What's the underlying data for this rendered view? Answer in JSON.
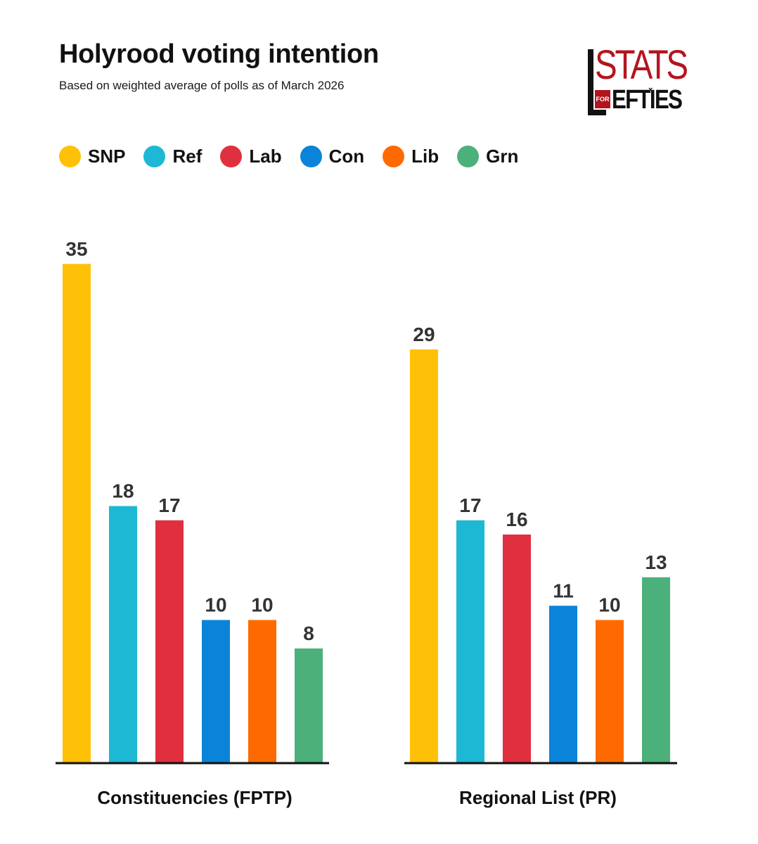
{
  "title": "Holyrood voting intention",
  "subtitle": "Based on weighted average of polls as of March 2026",
  "logo": {
    "line1": "STATS",
    "line2_badge": "FOR",
    "line2": "EFTIES",
    "mark": "×"
  },
  "legend": [
    {
      "label": "SNP",
      "color": "#FFC107"
    },
    {
      "label": "Ref",
      "color": "#1DB8D3"
    },
    {
      "label": "Lab",
      "color": "#E0303F"
    },
    {
      "label": "Con",
      "color": "#0A84D8"
    },
    {
      "label": "Lib",
      "color": "#FF6A00"
    },
    {
      "label": "Grn",
      "color": "#4CB07A"
    }
  ],
  "chart_data": [
    {
      "type": "bar",
      "xlabel": "Constituencies (FPTP)",
      "categories": [
        "SNP",
        "Ref",
        "Lab",
        "Con",
        "Lib",
        "Grn"
      ],
      "values": [
        35,
        18,
        17,
        10,
        10,
        8
      ],
      "ylim": [
        0,
        35
      ]
    },
    {
      "type": "bar",
      "xlabel": "Regional List (PR)",
      "categories": [
        "SNP",
        "Ref",
        "Lab",
        "Con",
        "Lib",
        "Grn"
      ],
      "values": [
        29,
        17,
        16,
        11,
        10,
        13
      ],
      "ylim": [
        0,
        35
      ]
    }
  ]
}
